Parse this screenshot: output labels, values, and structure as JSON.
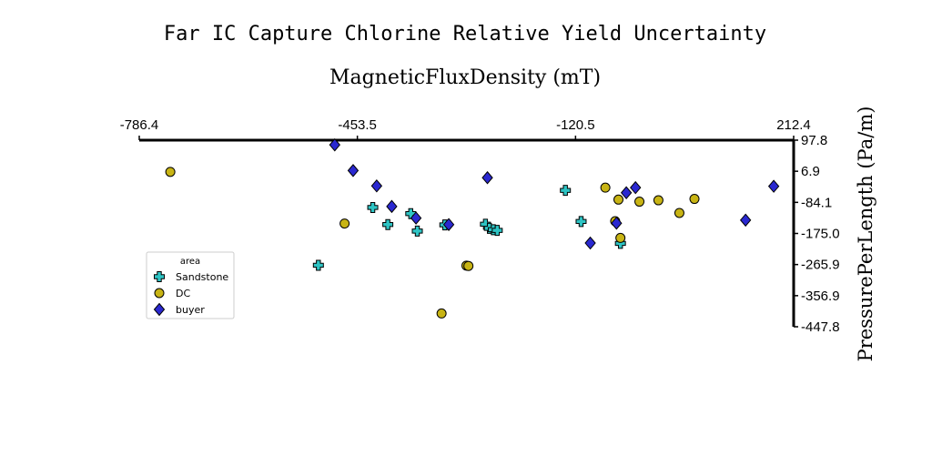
{
  "chart_data": {
    "type": "scatter",
    "title": "Far IC Capture Chlorine Relative Yield Uncertainty",
    "xlabel": "MagneticFluxDensity (mT)",
    "ylabel": "PressurePerLength (Pa/m)",
    "xlim": [
      -786.4,
      212.4
    ],
    "ylim": [
      -447.8,
      97.8
    ],
    "x_ticks": [
      "-786.4",
      "-453.5",
      "-120.5",
      "212.4"
    ],
    "y_ticks": [
      "97.8",
      "6.9",
      "-84.1",
      "-175.0",
      "-265.9",
      "-356.9",
      "-447.8"
    ],
    "x_axis_position": "top",
    "y_axis_position": "right",
    "grid": false,
    "legend": {
      "title": "area",
      "placement": "center-left"
    },
    "series": [
      {
        "name": "Sandstone",
        "marker": "plus",
        "color": "#2ec4c4",
        "points": [
          [
            -513,
            -268
          ],
          [
            -430,
            -99
          ],
          [
            -407,
            -149
          ],
          [
            -372,
            -117
          ],
          [
            -362,
            -168
          ],
          [
            -320,
            -150
          ],
          [
            -258,
            -148
          ],
          [
            -252,
            -160
          ],
          [
            -246,
            -164
          ],
          [
            -240,
            -166
          ],
          [
            -136,
            -49
          ],
          [
            -112,
            -140
          ],
          [
            -52,
            -204
          ]
        ]
      },
      {
        "name": "DC",
        "marker": "circle",
        "color": "#c8b414",
        "points": [
          [
            -739,
            5
          ],
          [
            -473,
            -146
          ],
          [
            -325,
            -409
          ],
          [
            -287,
            -269
          ],
          [
            -284,
            -270
          ],
          [
            -75,
            -41
          ],
          [
            -60,
            -139
          ],
          [
            -55,
            -76
          ],
          [
            -52,
            -188
          ],
          [
            -23,
            -82
          ],
          [
            6,
            -78
          ],
          [
            38,
            -115
          ],
          [
            61,
            -74
          ]
        ]
      },
      {
        "name": "buyer",
        "marker": "diamond",
        "color": "#2a28d0",
        "points": [
          [
            -488,
            84
          ],
          [
            -460,
            9
          ],
          [
            -424,
            -36
          ],
          [
            -401,
            -96
          ],
          [
            -364,
            -130
          ],
          [
            -314,
            -149
          ],
          [
            -255,
            -12
          ],
          [
            -98,
            -203
          ],
          [
            -58,
            -145
          ],
          [
            -43,
            -56
          ],
          [
            -29,
            -41
          ],
          [
            139,
            -136
          ],
          [
            182,
            -37
          ]
        ]
      }
    ]
  }
}
